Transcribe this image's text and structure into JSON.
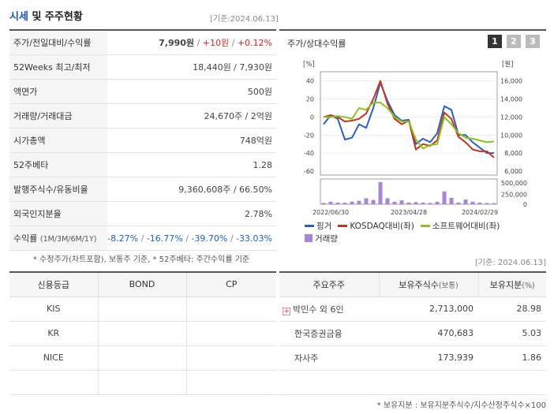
{
  "header": {
    "title_accent": "시세",
    "title_rest": " 및 주주현황",
    "date": "[기준:2024.06.13]"
  },
  "quote": {
    "price_label": "주가/전일대비/수익률",
    "price": "7,990원",
    "change": "+10원",
    "change_pct": "+0.12%",
    "wk52_label": "52Weeks 최고/최저",
    "wk52_value": "18,440원 / 7,930원",
    "par_label": "액면가",
    "par_value": "500원",
    "volume_label": "거래량/거래대금",
    "volume_value": "24,670주 / 2억원",
    "mktcap_label": "시가총액",
    "mktcap_value": "748억원",
    "beta_label": "52주베타",
    "beta_value": "1.28",
    "shares_label": "발행주식수/유동비율",
    "shares_value": "9,360,608주 / 66.50%",
    "foreign_label": "외국인지분율",
    "foreign_value": "2.78%",
    "return_label": "수익률",
    "return_periods": "(1M/3M/6M/1Y)",
    "returns": [
      "-8.27%",
      "-16.77%",
      "-39.70%",
      "-33.03%"
    ],
    "footnote": "* 수정주가(차트포함), 보통주 기준, * 52주베타: 주간수익률 기준"
  },
  "chart_panel": {
    "title": "주가/상대수익률",
    "tabs": [
      "1",
      "2",
      "3"
    ],
    "active_tab": "1"
  },
  "chart_data": {
    "type": "line",
    "left_axis": {
      "unit": "[%]",
      "ticks": [
        40,
        20,
        0,
        -20,
        -40,
        -60
      ],
      "ylim": [
        -60,
        45
      ]
    },
    "right_axis": {
      "unit": "[원]",
      "ticks": [
        "16,000",
        "14,000",
        "12,000",
        "10,000",
        "8,000",
        "6,000"
      ],
      "ylim": [
        6000,
        16000
      ]
    },
    "volume_axis": {
      "ticks": [
        "500,000",
        "250,000",
        "0"
      ],
      "ylim": [
        0,
        500000
      ]
    },
    "x_ticks": [
      "2022/06/30",
      "2023/04/28",
      "2024/02/29"
    ],
    "x_tick_index": [
      1,
      12,
      22
    ],
    "series": [
      {
        "name": "핑거",
        "color": "#2b5fc4",
        "values": [
          -8,
          2,
          -2,
          -25,
          -23,
          -8,
          -12,
          10,
          38,
          18,
          2,
          -4,
          -3,
          -30,
          -24,
          -28,
          -18,
          12,
          8,
          -20,
          -20,
          -28,
          -34,
          -40,
          -40
        ]
      },
      {
        "name": "KOSDAQ대비(좌)",
        "color": "#c8331e",
        "values": [
          0,
          2,
          0,
          -5,
          -4,
          -2,
          4,
          20,
          40,
          15,
          -2,
          -8,
          -4,
          -36,
          -30,
          -32,
          -26,
          5,
          -2,
          -22,
          -28,
          -36,
          -38,
          -38,
          -45
        ]
      },
      {
        "name": "소프트웨어대비(좌)",
        "color": "#8dc21f",
        "values": [
          0,
          0,
          1,
          0,
          -2,
          10,
          8,
          16,
          16,
          10,
          0,
          -5,
          -5,
          -25,
          -35,
          -31,
          -30,
          0,
          -8,
          -18,
          -23,
          -24,
          -26,
          -28,
          -27
        ]
      }
    ],
    "volume": {
      "name": "거래량",
      "color": "#a586d8",
      "values": [
        30000,
        60000,
        40000,
        35000,
        60000,
        80000,
        140000,
        100000,
        520000,
        140000,
        60000,
        90000,
        40000,
        50000,
        40000,
        30000,
        60000,
        300000,
        150000,
        40000,
        110000,
        60000,
        40000,
        30000,
        25000
      ]
    }
  },
  "legend": {
    "s1": "핑거",
    "s2": "KOSDAQ대비(좌)",
    "s3": "소프트웨어대비(좌)",
    "vol": "거래량"
  },
  "credit": {
    "headers": [
      "신용등급",
      "BOND",
      "CP"
    ],
    "rows": [
      [
        "KIS",
        "",
        ""
      ],
      [
        "KR",
        "",
        ""
      ],
      [
        "NICE",
        "",
        ""
      ],
      [
        "",
        "",
        ""
      ]
    ]
  },
  "holders": {
    "date": "[기준: 2024.06.13]",
    "headers": [
      "주요주주",
      "보유주식수",
      "(보통)",
      "보유지분",
      "(%)"
    ],
    "rows": [
      {
        "name": "박민수 외 6인",
        "shares": "2,713,000",
        "pct": "28.98"
      },
      {
        "name": "한국증권금융",
        "shares": "470,683",
        "pct": "5.03"
      },
      {
        "name": "자사주",
        "shares": "173,939",
        "pct": "1.86"
      }
    ],
    "expand_symbol": "+",
    "footnote": "* 보유지분 : 보유지분주식수/지수산정주식수×100"
  }
}
